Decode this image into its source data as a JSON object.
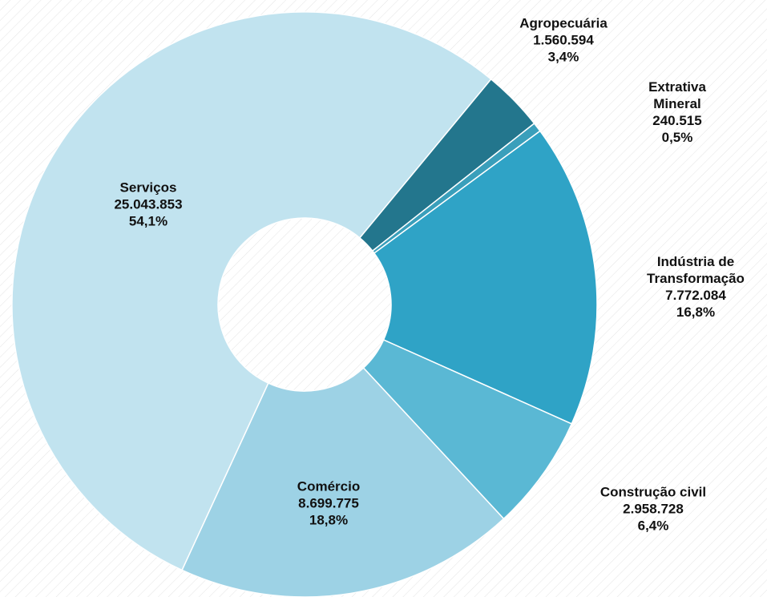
{
  "chart_data": {
    "type": "donut",
    "categories": [
      "Agropecuária",
      "Extrativa Mineral",
      "Indústria de Transformação",
      "Construção civil",
      "Comércio",
      "Serviços"
    ],
    "values": [
      1560594,
      240515,
      7772084,
      2958728,
      8699775,
      25043853
    ],
    "value_labels": [
      "1.560.594",
      "240.515",
      "7.772.084",
      "2.958.728",
      "8.699.775",
      "25.043.853"
    ],
    "percents": [
      3.4,
      0.5,
      16.8,
      6.4,
      18.8,
      54.1
    ],
    "percent_labels": [
      "3,4%",
      "0,5%",
      "16,8%",
      "6,4%",
      "18,8%",
      "54,1%"
    ],
    "colors": [
      "#23768d",
      "#3a9fbb",
      "#2fa3c6",
      "#5ab8d4",
      "#9dd2e5",
      "#c1e3ef"
    ]
  }
}
